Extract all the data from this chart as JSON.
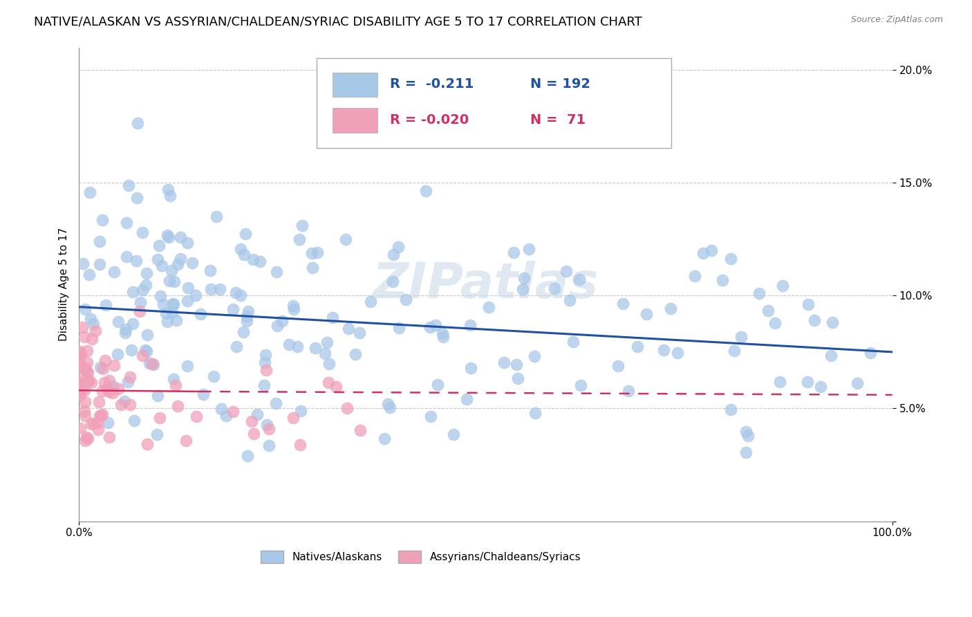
{
  "title": "NATIVE/ALASKAN VS ASSYRIAN/CHALDEAN/SYRIAC DISABILITY AGE 5 TO 17 CORRELATION CHART",
  "source": "Source: ZipAtlas.com",
  "ylabel": "Disability Age 5 to 17",
  "xlim": [
    0,
    100
  ],
  "ylim": [
    0,
    21
  ],
  "yticks": [
    0,
    5,
    10,
    15,
    20
  ],
  "ytick_labels": [
    "",
    "5.0%",
    "10.0%",
    "15.0%",
    "20.0%"
  ],
  "legend_label1": "Natives/Alaskans",
  "legend_label2": "Assyrians/Chaldeans/Syriacs",
  "blue_color": "#a8c8e8",
  "pink_color": "#f0a0b8",
  "blue_line_color": "#2050a0",
  "pink_line_color": "#d03060",
  "watermark": "ZIPatlas",
  "background_color": "#ffffff",
  "grid_color": "#c8c8c8",
  "title_fontsize": 13,
  "axis_fontsize": 11,
  "watermark_fontsize": 52
}
